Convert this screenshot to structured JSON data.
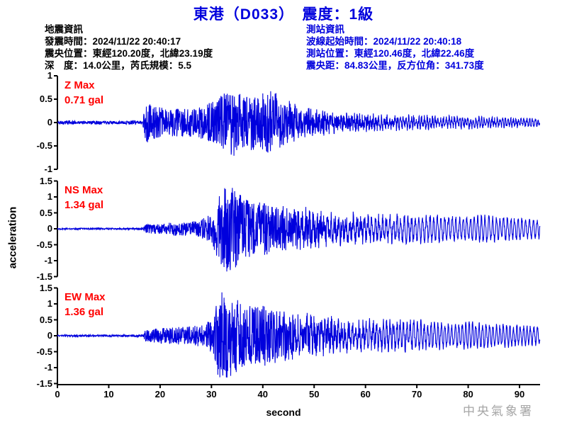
{
  "title": "東港（D033）　震度：1級",
  "event_info": {
    "heading": "地震資訊",
    "origin_time": "發震時間：2024/11/22 20:40:17",
    "epicenter": "震央位置：東經120.20度，北緯23.19度",
    "depth_magnitude": "深　度：14.0公里，芮氏規模：5.5"
  },
  "station_info": {
    "heading": "測站資訊",
    "wave_start_time": "波線起始時間：2024/11/22 20:40:18",
    "station_location": "測站位置：東經120.46度，北緯22.46度",
    "distance_azimuth": "震央距：84.83公里，反方位角：341.73度"
  },
  "watermark": "中央氣象署",
  "colors": {
    "title_blue": "#0000dd",
    "station_info_blue": "#0000dd",
    "event_info_black": "#000000",
    "max_label_red": "#ff0000",
    "waveform_blue": "#0000dd",
    "axis_black": "#000000",
    "watermark_gray": "#a6a6a6"
  },
  "chart_data": {
    "type": "line",
    "xlabel": "second",
    "ylabel": "acceleration",
    "unit": "gal",
    "x_range": [
      0,
      94
    ],
    "x_ticks": [
      0,
      10,
      20,
      30,
      40,
      50,
      60,
      70,
      80,
      90
    ],
    "grid": false,
    "panels": [
      {
        "component": "Z",
        "max_label_line1": "Z Max",
        "max_label_line2": "0.71 gal",
        "max": 0.71,
        "ylim": [
          -1,
          1
        ],
        "yticks": [
          1,
          0.5,
          0,
          -0.5,
          -1
        ],
        "seed": 11,
        "tail_mix": 0.45,
        "tail_freq": 1.9,
        "envelope": [
          [
            0,
            0.025
          ],
          [
            2,
            0.05
          ],
          [
            4,
            0.03
          ],
          [
            8,
            0.035
          ],
          [
            12,
            0.03
          ],
          [
            15,
            0.05
          ],
          [
            16.6,
            0.03
          ],
          [
            17.2,
            0.45
          ],
          [
            18.5,
            0.35
          ],
          [
            22,
            0.3
          ],
          [
            26,
            0.3
          ],
          [
            29,
            0.38
          ],
          [
            31,
            0.5
          ],
          [
            33,
            0.68
          ],
          [
            34.5,
            0.75
          ],
          [
            36,
            0.55
          ],
          [
            38,
            0.6
          ],
          [
            40,
            0.68
          ],
          [
            42,
            0.72
          ],
          [
            43.5,
            0.55
          ],
          [
            45,
            0.5
          ],
          [
            47,
            0.38
          ],
          [
            50,
            0.3
          ],
          [
            53,
            0.24
          ],
          [
            57,
            0.2
          ],
          [
            62,
            0.17
          ],
          [
            68,
            0.15
          ],
          [
            75,
            0.13
          ],
          [
            82,
            0.12
          ],
          [
            88,
            0.1
          ],
          [
            94,
            0.09
          ]
        ]
      },
      {
        "component": "NS",
        "max_label_line1": "NS Max",
        "max_label_line2": "1.34 gal",
        "max": 1.34,
        "ylim": [
          -1.5,
          1.5
        ],
        "yticks": [
          1.5,
          1,
          0.5,
          0,
          -0.5,
          -1,
          -1.5
        ],
        "seed": 22,
        "tail_mix": 0.7,
        "tail_freq": 1.4,
        "envelope": [
          [
            0,
            0.02
          ],
          [
            5,
            0.025
          ],
          [
            10,
            0.02
          ],
          [
            14,
            0.025
          ],
          [
            16.6,
            0.03
          ],
          [
            17.2,
            0.14
          ],
          [
            20,
            0.16
          ],
          [
            23,
            0.2
          ],
          [
            26,
            0.22
          ],
          [
            28,
            0.28
          ],
          [
            30,
            0.45
          ],
          [
            31.5,
            1.0
          ],
          [
            33,
            1.34
          ],
          [
            34.5,
            1.2
          ],
          [
            36,
            1.0
          ],
          [
            38,
            0.8
          ],
          [
            40,
            0.85
          ],
          [
            42,
            0.7
          ],
          [
            44,
            0.75
          ],
          [
            46,
            0.6
          ],
          [
            48,
            0.65
          ],
          [
            50,
            0.55
          ],
          [
            53,
            0.5
          ],
          [
            56,
            0.48
          ],
          [
            60,
            0.42
          ],
          [
            64,
            0.4
          ],
          [
            68,
            0.38
          ],
          [
            72,
            0.35
          ],
          [
            76,
            0.33
          ],
          [
            80,
            0.3
          ],
          [
            84,
            0.33
          ],
          [
            88,
            0.28
          ],
          [
            94,
            0.24
          ]
        ]
      },
      {
        "component": "EW",
        "max_label_line1": "EW Max",
        "max_label_line2": "1.36 gal",
        "max": 1.36,
        "ylim": [
          -1.5,
          1.5
        ],
        "yticks": [
          1.5,
          1,
          0.5,
          0,
          -0.5,
          -1,
          -1.5
        ],
        "seed": 33,
        "tail_mix": 0.7,
        "tail_freq": 1.5,
        "envelope": [
          [
            0,
            0.02
          ],
          [
            4,
            0.03
          ],
          [
            8,
            0.025
          ],
          [
            12,
            0.03
          ],
          [
            16.6,
            0.035
          ],
          [
            17.2,
            0.18
          ],
          [
            20,
            0.22
          ],
          [
            23,
            0.25
          ],
          [
            26,
            0.28
          ],
          [
            29,
            0.35
          ],
          [
            30.5,
            0.6
          ],
          [
            31.5,
            1.36
          ],
          [
            33,
            1.25
          ],
          [
            34.5,
            1.1
          ],
          [
            36,
            0.95
          ],
          [
            38,
            0.85
          ],
          [
            40,
            0.9
          ],
          [
            42,
            0.8
          ],
          [
            44,
            0.75
          ],
          [
            46,
            0.7
          ],
          [
            48,
            0.65
          ],
          [
            50,
            0.6
          ],
          [
            53,
            0.55
          ],
          [
            56,
            0.5
          ],
          [
            60,
            0.45
          ],
          [
            64,
            0.42
          ],
          [
            68,
            0.4
          ],
          [
            72,
            0.36
          ],
          [
            76,
            0.3
          ],
          [
            80,
            0.32
          ],
          [
            84,
            0.28
          ],
          [
            88,
            0.26
          ],
          [
            94,
            0.22
          ]
        ]
      }
    ]
  }
}
